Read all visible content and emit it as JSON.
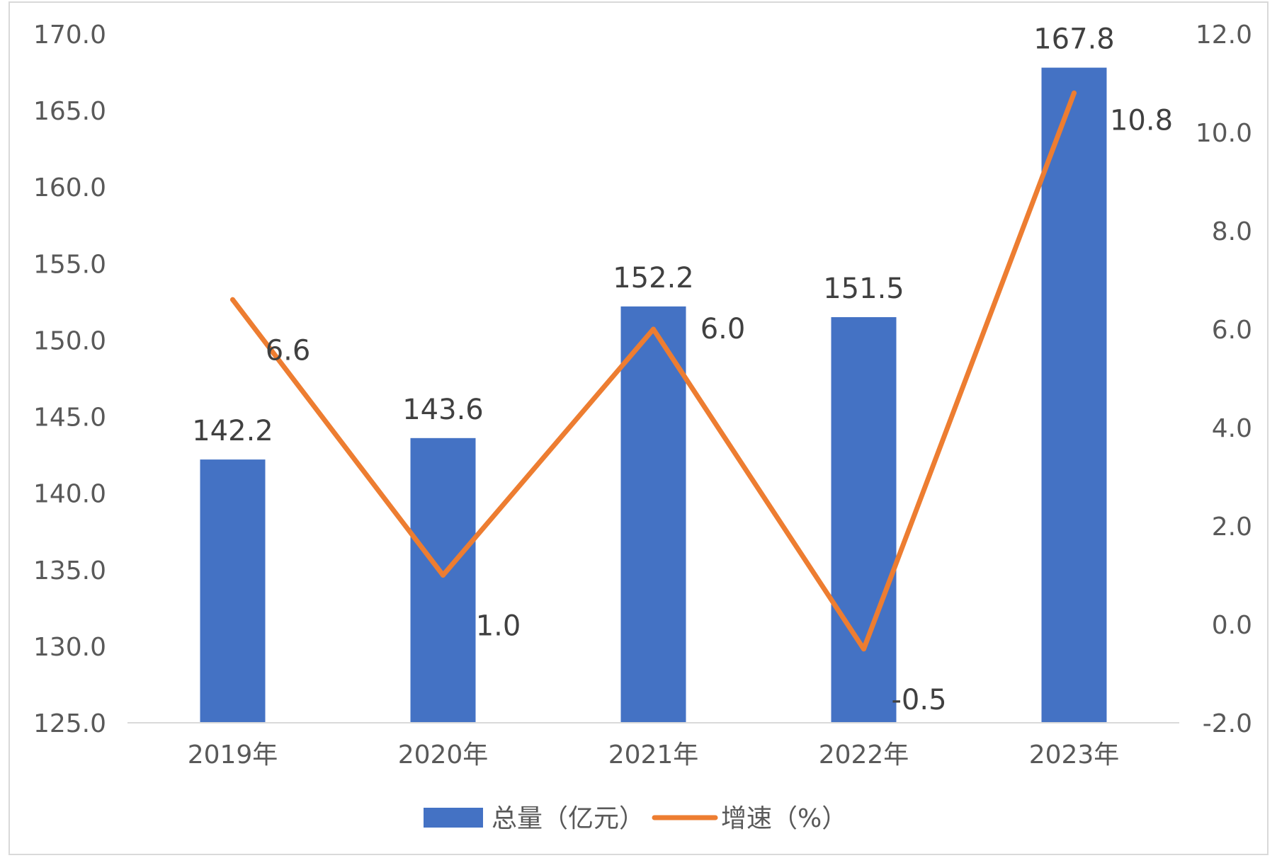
{
  "chart_data": {
    "type": "bar",
    "categories": [
      "2019年",
      "2020年",
      "2021年",
      "2022年",
      "2023年"
    ],
    "series": [
      {
        "name": "总量（亿元）",
        "type": "bar",
        "axis": "left",
        "color": "#4472C4",
        "values": [
          142.2,
          143.6,
          152.2,
          151.5,
          167.8
        ],
        "labels": [
          "142.2",
          "143.6",
          "152.2",
          "151.5",
          "167.8"
        ]
      },
      {
        "name": "增速（%）",
        "type": "line",
        "axis": "right",
        "color": "#ED7D31",
        "values": [
          6.6,
          1.0,
          6.0,
          -0.5,
          10.8
        ],
        "labels": [
          "6.6",
          "1.0",
          "6.0",
          "-0.5",
          "10.8"
        ]
      }
    ],
    "y_left": {
      "min": 125.0,
      "max": 170.0,
      "ticks": [
        "125.0",
        "130.0",
        "135.0",
        "140.0",
        "145.0",
        "150.0",
        "155.0",
        "160.0",
        "165.0",
        "170.0"
      ]
    },
    "y_right": {
      "min": -2.0,
      "max": 12.0,
      "ticks": [
        "-2.0",
        "0.0",
        "2.0",
        "4.0",
        "6.0",
        "8.0",
        "10.0",
        "12.0"
      ]
    },
    "grid": false,
    "legend": "bottom"
  }
}
